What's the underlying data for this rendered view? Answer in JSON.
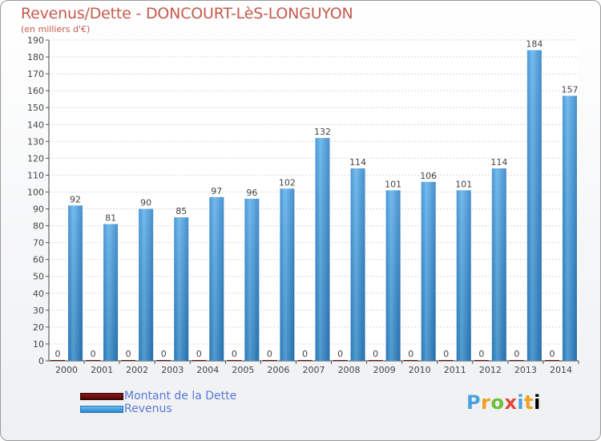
{
  "header": {
    "title": "Revenus/Dette - DONCOURT-LèS-LONGUYON",
    "subtitle": "(en milliers d'€)"
  },
  "brand": {
    "letters": [
      "P",
      "r",
      "o",
      "x",
      "i",
      "t",
      "i"
    ]
  },
  "chart_data": {
    "type": "bar",
    "title": "Revenus/Dette - DONCOURT-LèS-LONGUYON",
    "ylabel": "(en milliers d'€)",
    "xlabel": "",
    "ylim": [
      0,
      190
    ],
    "ytick_step": 10,
    "grid": true,
    "legend_position": "bottom-left",
    "categories": [
      "2000",
      "2001",
      "2002",
      "2003",
      "2004",
      "2005",
      "2006",
      "2007",
      "2008",
      "2009",
      "2010",
      "2011",
      "2012",
      "2013",
      "2014"
    ],
    "series": [
      {
        "name": "Montant de la Dette",
        "color": "#6b0f0f",
        "values": [
          0,
          0,
          0,
          0,
          0,
          0,
          0,
          0,
          0,
          0,
          0,
          0,
          0,
          0,
          0
        ]
      },
      {
        "name": "Revenus",
        "color": "#4aa3e3",
        "values": [
          92,
          81,
          90,
          85,
          97,
          96,
          102,
          132,
          114,
          101,
          106,
          101,
          114,
          184,
          157
        ]
      }
    ]
  }
}
